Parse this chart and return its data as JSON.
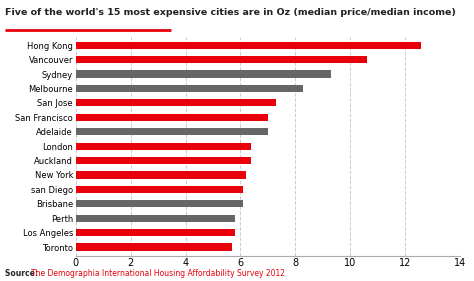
{
  "title": "Five of the world's 15 most expensive cities are in Oz (median price/median income)",
  "cities": [
    "Hong Kong",
    "Vancouver",
    "Sydney",
    "Melbourne",
    "San Jose",
    "San Francisco",
    "Adelaide",
    "London",
    "Auckland",
    "New York",
    "san Diego",
    "Brisbane",
    "Perth",
    "Los Angeles",
    "Toronto"
  ],
  "values": [
    12.6,
    10.6,
    9.3,
    8.3,
    7.3,
    7.0,
    7.0,
    6.4,
    6.4,
    6.2,
    6.1,
    6.1,
    5.8,
    5.8,
    5.7
  ],
  "colors": [
    "#e8000a",
    "#e8000a",
    "#666666",
    "#666666",
    "#e8000a",
    "#e8000a",
    "#666666",
    "#e8000a",
    "#e8000a",
    "#e8000a",
    "#e8000a",
    "#666666",
    "#666666",
    "#e8000a",
    "#e8000a"
  ],
  "xlim": [
    0,
    14
  ],
  "xticks": [
    0,
    2,
    4,
    6,
    8,
    10,
    12,
    14
  ],
  "source_label": "Source: ",
  "source_link": "The Demographia International Housing Affordability Survey 2012",
  "bg_color": "#ffffff",
  "title_red_line_color": "#e8000a",
  "grid_color": "#cccccc",
  "bar_height": 0.5
}
